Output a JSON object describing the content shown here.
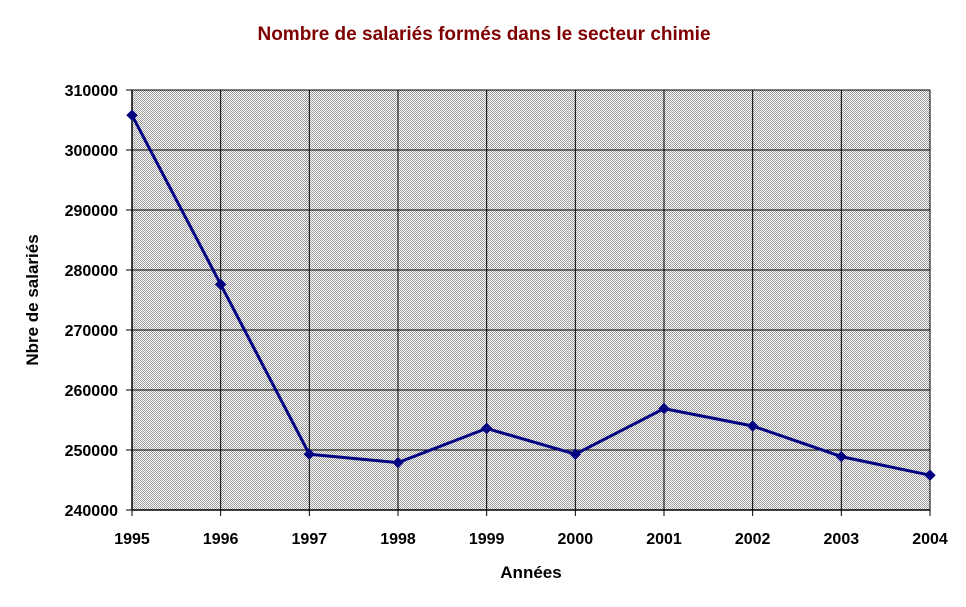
{
  "colors": {
    "title": "#7f0000",
    "series_line": "#000080",
    "plot_background": "#c0c0c0",
    "gridline": "#000000"
  },
  "chart_data": {
    "type": "line",
    "title": "Nombre de salariés formés dans le secteur chimie",
    "xlabel": "Années",
    "ylabel": "Nbre de salariés",
    "categories": [
      "1995",
      "1996",
      "1997",
      "1998",
      "1999",
      "2000",
      "2001",
      "2002",
      "2003",
      "2004"
    ],
    "series": [
      {
        "values": [
          305800,
          277600,
          249300,
          247900,
          253600,
          249300,
          256900,
          254000,
          248900,
          245800
        ],
        "marker": "diamond",
        "color": "#000080"
      }
    ],
    "ylim": [
      240000,
      310000
    ],
    "yticks": [
      "240000",
      "250000",
      "260000",
      "270000",
      "280000",
      "290000",
      "300000",
      "310000"
    ],
    "ytick_values": [
      240000,
      250000,
      260000,
      270000,
      280000,
      290000,
      300000,
      310000
    ],
    "grid": true,
    "plot_background": "dotted gray"
  }
}
